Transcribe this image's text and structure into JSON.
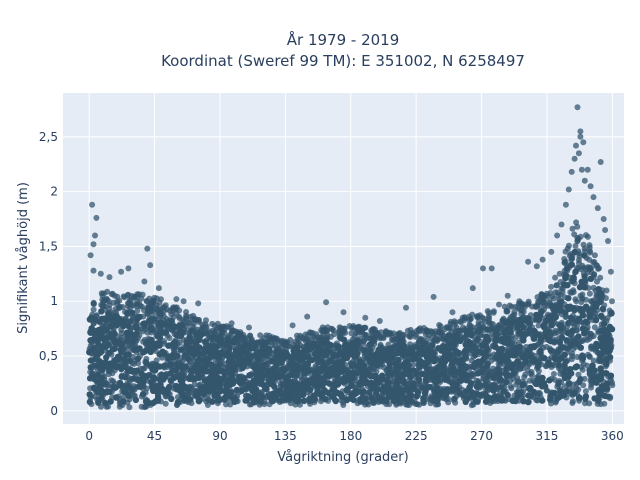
{
  "chart_data": {
    "type": "scatter",
    "title_line1": "År 1979 - 2019",
    "title_line2": "Koordinat (Sweref 99 TM): E 351002, N 6258497",
    "xlabel": "Vågriktning (grader)",
    "ylabel": "Signifikant våghöjd (m)",
    "xlim": [
      -18,
      368
    ],
    "ylim": [
      -0.12,
      2.9
    ],
    "xticks": [
      0,
      45,
      90,
      135,
      180,
      225,
      270,
      315,
      360
    ],
    "xtick_labels": [
      "0",
      "45",
      "90",
      "135",
      "180",
      "225",
      "270",
      "315",
      "360"
    ],
    "yticks": [
      0,
      0.5,
      1,
      1.5,
      2,
      2.5
    ],
    "ytick_labels": [
      "0",
      "0,5",
      "1",
      "1,5",
      "2",
      "2,5"
    ],
    "grid": true,
    "plot_background": "#e5ecf6",
    "marker_color": "#34566d",
    "envelope": {
      "x": [
        0,
        10,
        20,
        30,
        45,
        60,
        75,
        90,
        105,
        120,
        135,
        150,
        165,
        180,
        195,
        210,
        225,
        240,
        255,
        270,
        285,
        300,
        310,
        320,
        325,
        330,
        335,
        340,
        345,
        350,
        355,
        360
      ],
      "upper": [
        1.0,
        1.1,
        1.05,
        1.1,
        1.05,
        0.95,
        0.85,
        0.8,
        0.72,
        0.7,
        0.65,
        0.72,
        0.78,
        0.78,
        0.75,
        0.72,
        0.75,
        0.78,
        0.85,
        0.9,
        0.95,
        1.0,
        1.05,
        1.2,
        1.35,
        1.55,
        1.8,
        1.7,
        1.55,
        1.35,
        1.15,
        1.05
      ],
      "lower": [
        0.03,
        0.03,
        0.03,
        0.03,
        0.03,
        0.04,
        0.05,
        0.05,
        0.05,
        0.05,
        0.05,
        0.05,
        0.05,
        0.05,
        0.05,
        0.05,
        0.05,
        0.05,
        0.05,
        0.05,
        0.05,
        0.05,
        0.05,
        0.05,
        0.05,
        0.05,
        0.05,
        0.05,
        0.05,
        0.05,
        0.05,
        0.03
      ]
    },
    "outliers": [
      {
        "x": 2,
        "y": 1.88
      },
      {
        "x": 5,
        "y": 1.76
      },
      {
        "x": 4,
        "y": 1.6
      },
      {
        "x": 3,
        "y": 1.52
      },
      {
        "x": 1,
        "y": 1.42
      },
      {
        "x": 3,
        "y": 1.28
      },
      {
        "x": 8,
        "y": 1.25
      },
      {
        "x": 14,
        "y": 1.22
      },
      {
        "x": 22,
        "y": 1.27
      },
      {
        "x": 27,
        "y": 1.3
      },
      {
        "x": 40,
        "y": 1.48
      },
      {
        "x": 42,
        "y": 1.33
      },
      {
        "x": 38,
        "y": 1.18
      },
      {
        "x": 48,
        "y": 1.12
      },
      {
        "x": 60,
        "y": 1.02
      },
      {
        "x": 65,
        "y": 1.0
      },
      {
        "x": 75,
        "y": 0.98
      },
      {
        "x": 98,
        "y": 0.8
      },
      {
        "x": 110,
        "y": 0.76
      },
      {
        "x": 140,
        "y": 0.78
      },
      {
        "x": 150,
        "y": 0.86
      },
      {
        "x": 163,
        "y": 0.99
      },
      {
        "x": 175,
        "y": 0.9
      },
      {
        "x": 190,
        "y": 0.85
      },
      {
        "x": 200,
        "y": 0.82
      },
      {
        "x": 218,
        "y": 0.94
      },
      {
        "x": 237,
        "y": 1.04
      },
      {
        "x": 250,
        "y": 0.9
      },
      {
        "x": 257,
        "y": 0.85
      },
      {
        "x": 264,
        "y": 1.12
      },
      {
        "x": 271,
        "y": 1.3
      },
      {
        "x": 277,
        "y": 1.3
      },
      {
        "x": 282,
        "y": 0.97
      },
      {
        "x": 288,
        "y": 1.05
      },
      {
        "x": 296,
        "y": 1.0
      },
      {
        "x": 302,
        "y": 1.36
      },
      {
        "x": 308,
        "y": 1.32
      },
      {
        "x": 312,
        "y": 1.38
      },
      {
        "x": 318,
        "y": 1.45
      },
      {
        "x": 322,
        "y": 1.6
      },
      {
        "x": 325,
        "y": 1.7
      },
      {
        "x": 328,
        "y": 1.88
      },
      {
        "x": 330,
        "y": 2.02
      },
      {
        "x": 332,
        "y": 2.18
      },
      {
        "x": 334,
        "y": 2.3
      },
      {
        "x": 335,
        "y": 2.42
      },
      {
        "x": 337,
        "y": 2.35
      },
      {
        "x": 338,
        "y": 2.5
      },
      {
        "x": 339,
        "y": 2.2
      },
      {
        "x": 340,
        "y": 2.45
      },
      {
        "x": 341,
        "y": 2.1
      },
      {
        "x": 343,
        "y": 2.2
      },
      {
        "x": 345,
        "y": 2.05
      },
      {
        "x": 347,
        "y": 1.95
      },
      {
        "x": 350,
        "y": 1.85
      },
      {
        "x": 352,
        "y": 2.27
      },
      {
        "x": 354,
        "y": 1.75
      },
      {
        "x": 355,
        "y": 1.65
      },
      {
        "x": 357,
        "y": 1.55
      },
      {
        "x": 359,
        "y": 1.27
      },
      {
        "x": 336,
        "y": 2.77
      },
      {
        "x": 338,
        "y": 2.55
      }
    ]
  }
}
